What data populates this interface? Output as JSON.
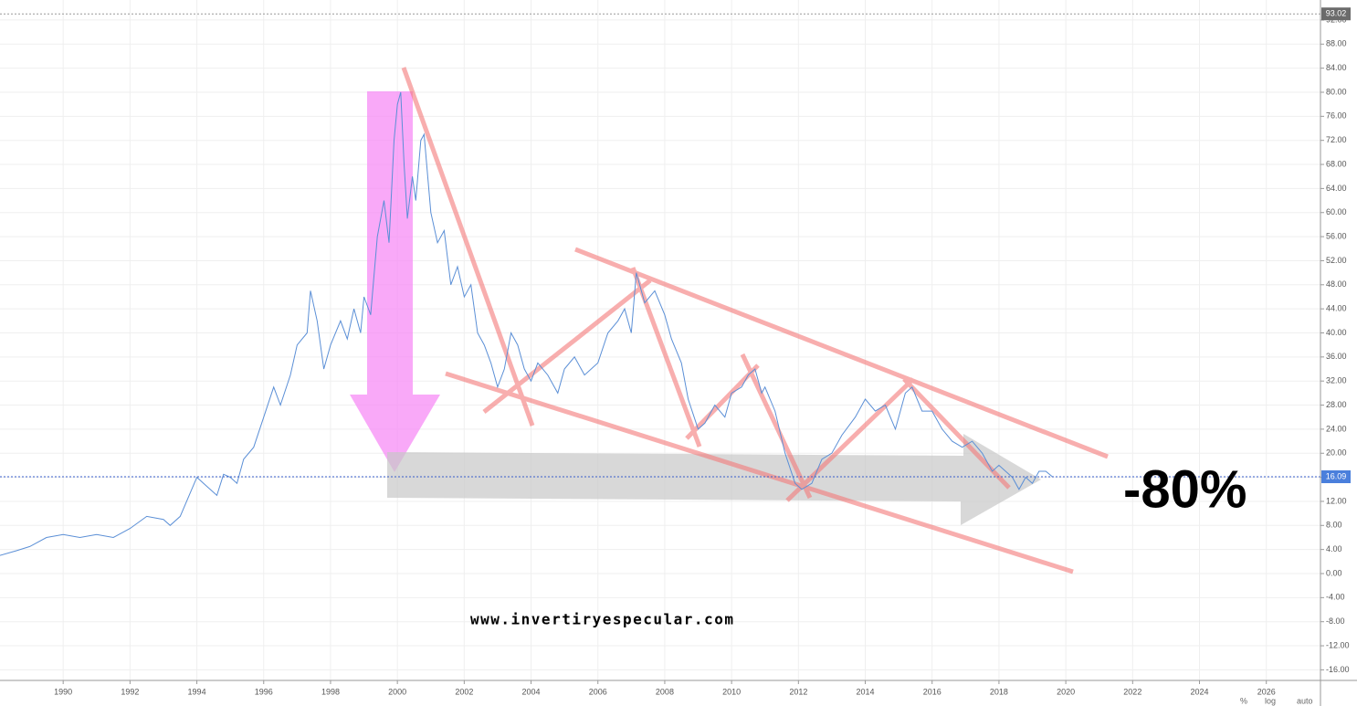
{
  "chart_data": {
    "type": "line",
    "x": [
      1988.1,
      1988.6,
      1989,
      1989.5,
      1990,
      1990.5,
      1991,
      1991.5,
      1992,
      1992.5,
      1993,
      1993.2,
      1993.5,
      1994,
      1994.3,
      1994.6,
      1994.8,
      1995,
      1995.2,
      1995.4,
      1995.7,
      1996,
      1996.3,
      1996.5,
      1996.8,
      1997,
      1997.3,
      1997.4,
      1997.6,
      1997.8,
      1998,
      1998.3,
      1998.5,
      1998.7,
      1998.9,
      1999,
      1999.2,
      1999.4,
      1999.6,
      1999.75,
      1999.9,
      2000,
      2000.1,
      2000.2,
      2000.3,
      2000.45,
      2000.55,
      2000.7,
      2000.8,
      2001,
      2001.2,
      2001.4,
      2001.6,
      2001.8,
      2002,
      2002.2,
      2002.4,
      2002.6,
      2002.8,
      2003,
      2003.2,
      2003.4,
      2003.6,
      2003.8,
      2004,
      2004.2,
      2004.5,
      2004.8,
      2005,
      2005.3,
      2005.6,
      2006,
      2006.3,
      2006.6,
      2006.8,
      2007,
      2007.15,
      2007.4,
      2007.7,
      2008,
      2008.2,
      2008.5,
      2008.7,
      2009,
      2009.2,
      2009.5,
      2009.8,
      2010,
      2010.3,
      2010.5,
      2010.7,
      2010.9,
      2011,
      2011.3,
      2011.6,
      2011.9,
      2012.1,
      2012.4,
      2012.7,
      2013,
      2013.3,
      2013.7,
      2014,
      2014.3,
      2014.6,
      2014.9,
      2015.2,
      2015.4,
      2015.7,
      2016,
      2016.3,
      2016.6,
      2016.9,
      2017.2,
      2017.5,
      2017.8,
      2018,
      2018.2,
      2018.4,
      2018.6,
      2018.8,
      2019,
      2019.2,
      2019.4,
      2019.6
    ],
    "series": [
      {
        "color": "#5b8fd6",
        "values": [
          3,
          3.8,
          4.5,
          6,
          6.5,
          6,
          6.5,
          6,
          7.5,
          9.5,
          9,
          8,
          9.5,
          16,
          14.5,
          13,
          16.5,
          16,
          15,
          19,
          21,
          26,
          31,
          28,
          33,
          38,
          40,
          47,
          42,
          34,
          38,
          42,
          39,
          44,
          40,
          46,
          43,
          56,
          62,
          55,
          72,
          78,
          80,
          68,
          59,
          66,
          62,
          72,
          73,
          60,
          55,
          57,
          48,
          51,
          46,
          48,
          40,
          38,
          35,
          31,
          34,
          40,
          38,
          34,
          32,
          35,
          33,
          30,
          34,
          36,
          33,
          35,
          40,
          42,
          44,
          40,
          50,
          45,
          47,
          43,
          39,
          35,
          29,
          24,
          25,
          28,
          26,
          30,
          31,
          33,
          34,
          30,
          31,
          27,
          20,
          15,
          14,
          15,
          19,
          20,
          23,
          26,
          29,
          27,
          28,
          24,
          30,
          31,
          27,
          27,
          24,
          22,
          21,
          22,
          20,
          17,
          18,
          17,
          16,
          14,
          16,
          15,
          17,
          17,
          16.09
        ]
      }
    ],
    "xlim": [
      1988.11,
      2027.62
    ],
    "ylim": [
      -17.76,
      95.33
    ],
    "xticks": [
      1990,
      1992,
      1994,
      1996,
      1998,
      2000,
      2002,
      2004,
      2006,
      2008,
      2010,
      2012,
      2014,
      2016,
      2018,
      2020,
      2022,
      2024,
      2026
    ],
    "yticks": [
      {
        "value": -16,
        "label": "-16.00"
      },
      {
        "value": -12,
        "label": "-12.00"
      },
      {
        "value": -8,
        "label": "-8.00"
      },
      {
        "value": -4,
        "label": "-4.00"
      },
      {
        "value": 0,
        "label": "0.00"
      },
      {
        "value": 4,
        "label": "4.00"
      },
      {
        "value": 8,
        "label": "8.00"
      },
      {
        "value": 12,
        "label": "12.00"
      },
      {
        "value": 16,
        "label": "16.00"
      },
      {
        "value": 20,
        "label": "20.00"
      },
      {
        "value": 24,
        "label": "24.00"
      },
      {
        "value": 28,
        "label": "28.00"
      },
      {
        "value": 32,
        "label": "32.00"
      },
      {
        "value": 36,
        "label": "36.00"
      },
      {
        "value": 40,
        "label": "40.00"
      },
      {
        "value": 44,
        "label": "44.00"
      },
      {
        "value": 48,
        "label": "48.00"
      },
      {
        "value": 52,
        "label": "52.00"
      },
      {
        "value": 56,
        "label": "56.00"
      },
      {
        "value": 60,
        "label": "60.00"
      },
      {
        "value": 64,
        "label": "64.00"
      },
      {
        "value": 68,
        "label": "68.00"
      },
      {
        "value": 72,
        "label": "72.00"
      },
      {
        "value": 76,
        "label": "76.00"
      },
      {
        "value": 80,
        "label": "80.00"
      },
      {
        "value": 84,
        "label": "84.00"
      },
      {
        "value": 88,
        "label": "88.00"
      },
      {
        "value": 92,
        "label": "92.00"
      }
    ],
    "grid": true,
    "price_lines": [
      {
        "value": 93.02,
        "color": "#999999",
        "label_bg": "#6b6b6b"
      },
      {
        "value": 16.09,
        "color": "#3a5fcd",
        "label_bg": "#4a7fdc"
      }
    ],
    "annotations": {
      "change": "-80%",
      "website": "www.invertiryespecular.com",
      "pct": "%",
      "log": "log",
      "auto": "auto"
    }
  }
}
